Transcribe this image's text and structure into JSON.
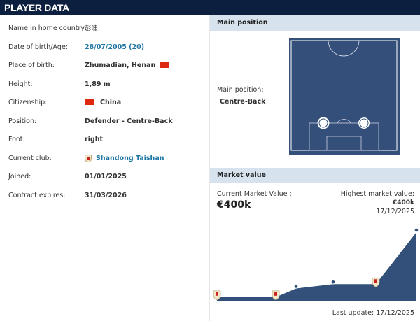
{
  "header": {
    "title": "PLAYER DATA"
  },
  "player": [
    {
      "label": "Name in home country:",
      "value": "彭啸",
      "style": "plain"
    },
    {
      "label": "Date of birth/Age:",
      "value": "28/07/2005 (20)",
      "style": "link"
    },
    {
      "label": "Place of birth:",
      "value": "Zhumadian, Henan",
      "flag_after": "china-flag-icon"
    },
    {
      "label": "Height:",
      "value": "1,89 m"
    },
    {
      "label": "Citizenship:",
      "value": "China",
      "flag_before": "china-flag-icon"
    },
    {
      "label": "Position:",
      "value": "Defender - Centre-Back"
    },
    {
      "label": "Foot:",
      "value": "right"
    },
    {
      "label": "Current club:",
      "value": "Shandong Taishan",
      "style": "link",
      "icon": "club-crest-icon"
    },
    {
      "label": "Joined:",
      "value": "01/01/2025"
    },
    {
      "label": "Contract expires:",
      "value": "31/03/2026"
    }
  ],
  "main_position": {
    "title": "Main position",
    "label": "Main position:",
    "value": "Centre-Back"
  },
  "market_value": {
    "title": "Market value",
    "current_label": "Current Market Value :",
    "current_value": "€400k",
    "highest_label": "Highest market value:",
    "highest_value": "€400k",
    "highest_date": "17/12/2025",
    "last_update": "Last update: 17/12/2025"
  },
  "chart_data": {
    "type": "area",
    "series": [
      {
        "values": [
          25,
          25,
          75,
          100,
          100,
          400
        ],
        "markers": [
          "club-crest",
          "club-crest",
          "dot",
          "dot",
          "club-crest",
          "dot"
        ]
      }
    ],
    "unit": "€k",
    "colors": {
      "fill": "#33507a",
      "line": "#ffffff"
    }
  },
  "colors": {
    "header": "#0c1f3f",
    "section": "#d6e3ee",
    "link": "#1d75a3",
    "pitch": "#34507a"
  }
}
